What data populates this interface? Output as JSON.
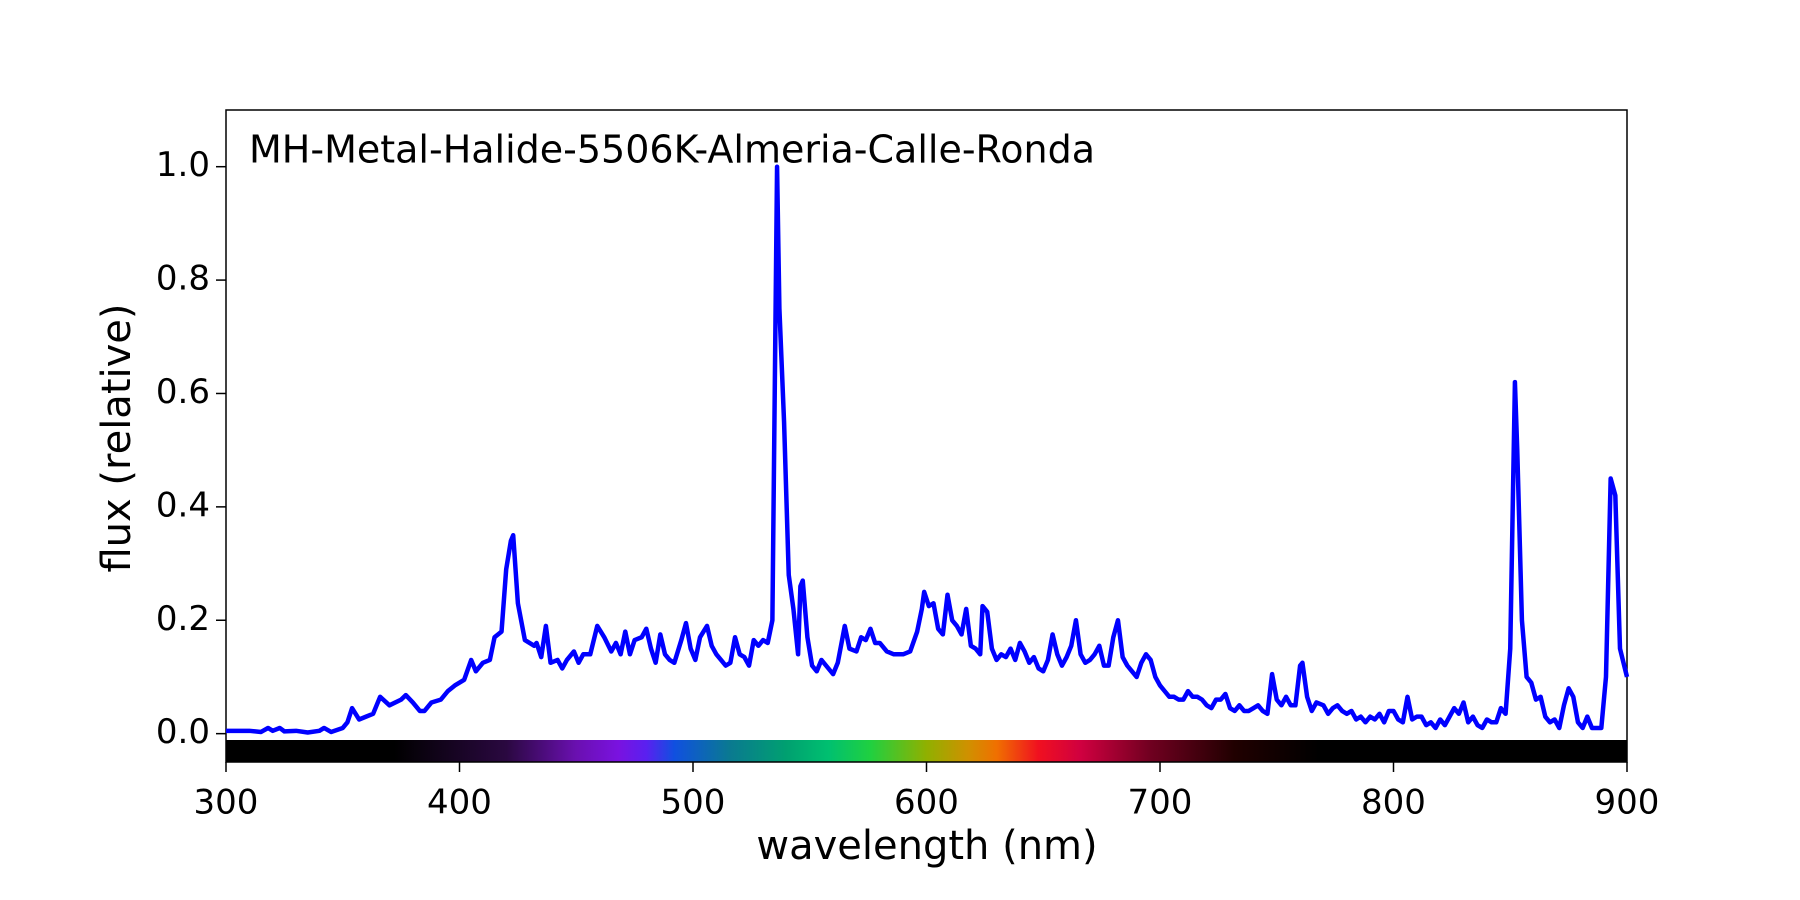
{
  "chart_data": {
    "type": "line",
    "title": "MH-Metal-Halide-5506K-Almeria-Calle-Ronda",
    "x_label": "wavelength (nm)",
    "y_label": "flux (relative)",
    "color": "#0000ff",
    "xlim": [
      300,
      900
    ],
    "ylim": [
      -0.05,
      1.1
    ],
    "xticks": [
      300,
      400,
      500,
      600,
      700,
      800,
      900
    ],
    "yticks": [
      {
        "value": 0,
        "label": "0.0"
      },
      0.2,
      0.4,
      0.6,
      0.8,
      {
        "value": 1,
        "label": "1.0"
      }
    ],
    "x": [
      300,
      305,
      310,
      315,
      318,
      320,
      323,
      325,
      330,
      335,
      340,
      342,
      345,
      350,
      352,
      354,
      357,
      360,
      363,
      366,
      370,
      375,
      377,
      380,
      383,
      385,
      388,
      392,
      395,
      398,
      402,
      405,
      407,
      410,
      413,
      415,
      418,
      420,
      422,
      423,
      425,
      428,
      432,
      433,
      435,
      437,
      439,
      442,
      444,
      446,
      449,
      451,
      453,
      456,
      459,
      462,
      465,
      467,
      469,
      471,
      473,
      475,
      478,
      480,
      482,
      484,
      486,
      488,
      490,
      492,
      495,
      497,
      499,
      501,
      503,
      506,
      508,
      510,
      512,
      514,
      516,
      518,
      520,
      522,
      524,
      526,
      528,
      530,
      532,
      534,
      536,
      537,
      539,
      541,
      543,
      545,
      546,
      547,
      549,
      551,
      553,
      555,
      557,
      560,
      562,
      565,
      567,
      570,
      572,
      574,
      576,
      578,
      580,
      583,
      586,
      590,
      593,
      596,
      598,
      599,
      601,
      603,
      605,
      607,
      609,
      611,
      613,
      615,
      617,
      619,
      621,
      623,
      624,
      626,
      628,
      630,
      632,
      634,
      636,
      638,
      640,
      642,
      644,
      646,
      648,
      650,
      652,
      654,
      656,
      658,
      660,
      662,
      664,
      666,
      668,
      670,
      672,
      674,
      676,
      678,
      680,
      682,
      684,
      686,
      688,
      690,
      692,
      694,
      696,
      698,
      700,
      702,
      704,
      706,
      708,
      710,
      712,
      714,
      716,
      718,
      720,
      722,
      724,
      726,
      728,
      730,
      732,
      734,
      736,
      738,
      740,
      742,
      744,
      746,
      748,
      750,
      752,
      754,
      756,
      758,
      760,
      761,
      763,
      765,
      767,
      770,
      772,
      774,
      776,
      778,
      780,
      782,
      784,
      786,
      788,
      790,
      792,
      794,
      796,
      798,
      800,
      802,
      804,
      806,
      808,
      810,
      812,
      814,
      816,
      818,
      820,
      822,
      824,
      826,
      828,
      830,
      832,
      834,
      836,
      838,
      840,
      842,
      844,
      846,
      848,
      850,
      852,
      853,
      855,
      857,
      859,
      861,
      863,
      865,
      867,
      869,
      871,
      873,
      875,
      877,
      879,
      881,
      883,
      885,
      887,
      889,
      891,
      893,
      895,
      897,
      900
    ],
    "values": [
      0.005,
      0.005,
      0.005,
      0.003,
      0.01,
      0.005,
      0.01,
      0.004,
      0.005,
      0.002,
      0.005,
      0.01,
      0.003,
      0.01,
      0.02,
      0.045,
      0.025,
      0.03,
      0.035,
      0.065,
      0.05,
      0.06,
      0.068,
      0.055,
      0.04,
      0.04,
      0.055,
      0.06,
      0.075,
      0.085,
      0.095,
      0.13,
      0.11,
      0.125,
      0.13,
      0.17,
      0.18,
      0.29,
      0.34,
      0.35,
      0.23,
      0.165,
      0.155,
      0.16,
      0.135,
      0.19,
      0.125,
      0.13,
      0.115,
      0.13,
      0.145,
      0.125,
      0.14,
      0.14,
      0.19,
      0.17,
      0.145,
      0.16,
      0.14,
      0.18,
      0.14,
      0.165,
      0.17,
      0.185,
      0.15,
      0.125,
      0.175,
      0.14,
      0.13,
      0.125,
      0.165,
      0.195,
      0.15,
      0.13,
      0.17,
      0.19,
      0.155,
      0.14,
      0.13,
      0.12,
      0.125,
      0.17,
      0.14,
      0.135,
      0.12,
      0.165,
      0.155,
      0.165,
      0.16,
      0.2,
      1.0,
      0.75,
      0.55,
      0.28,
      0.22,
      0.14,
      0.26,
      0.27,
      0.17,
      0.12,
      0.11,
      0.13,
      0.12,
      0.105,
      0.125,
      0.19,
      0.15,
      0.145,
      0.17,
      0.165,
      0.185,
      0.16,
      0.16,
      0.145,
      0.14,
      0.14,
      0.145,
      0.18,
      0.22,
      0.25,
      0.225,
      0.23,
      0.185,
      0.175,
      0.245,
      0.2,
      0.19,
      0.175,
      0.22,
      0.155,
      0.15,
      0.14,
      0.225,
      0.215,
      0.15,
      0.13,
      0.14,
      0.135,
      0.15,
      0.13,
      0.16,
      0.145,
      0.125,
      0.135,
      0.115,
      0.11,
      0.13,
      0.175,
      0.14,
      0.12,
      0.135,
      0.155,
      0.2,
      0.14,
      0.125,
      0.13,
      0.14,
      0.155,
      0.12,
      0.12,
      0.17,
      0.2,
      0.135,
      0.12,
      0.11,
      0.1,
      0.125,
      0.14,
      0.13,
      0.1,
      0.085,
      0.075,
      0.065,
      0.065,
      0.06,
      0.06,
      0.075,
      0.065,
      0.065,
      0.06,
      0.05,
      0.045,
      0.06,
      0.06,
      0.07,
      0.045,
      0.04,
      0.05,
      0.04,
      0.04,
      0.045,
      0.05,
      0.04,
      0.035,
      0.105,
      0.06,
      0.05,
      0.065,
      0.05,
      0.05,
      0.12,
      0.125,
      0.065,
      0.04,
      0.055,
      0.05,
      0.035,
      0.045,
      0.05,
      0.04,
      0.035,
      0.04,
      0.025,
      0.03,
      0.02,
      0.03,
      0.025,
      0.035,
      0.02,
      0.04,
      0.04,
      0.025,
      0.02,
      0.065,
      0.025,
      0.03,
      0.03,
      0.015,
      0.02,
      0.01,
      0.025,
      0.015,
      0.03,
      0.045,
      0.035,
      0.055,
      0.02,
      0.03,
      0.015,
      0.01,
      0.025,
      0.02,
      0.02,
      0.045,
      0.035,
      0.15,
      0.62,
      0.5,
      0.2,
      0.1,
      0.09,
      0.06,
      0.065,
      0.03,
      0.02,
      0.025,
      0.01,
      0.05,
      0.08,
      0.065,
      0.02,
      0.01,
      0.03,
      0.01,
      0.01,
      0.01,
      0.1,
      0.45,
      0.42,
      0.15,
      0.1
    ]
  }
}
